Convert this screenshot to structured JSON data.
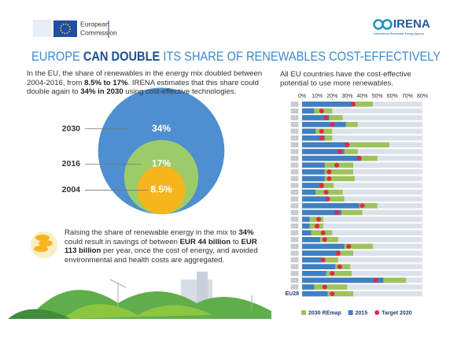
{
  "header": {
    "left_logo": [
      "European",
      "Commission"
    ],
    "right_logo": "IRENA",
    "right_logo_sub": "International Renewable Energy Agency"
  },
  "title": [
    "EUROPE ",
    "CAN DOUBLE",
    " ITS SHARE OF RENEWABLES COST-EFFECTIVELY"
  ],
  "intro": [
    "In the EU, the share of renewables in the energy mix doubled between 2004-2016, from ",
    "8.5% to 17%",
    ". IRENA estimates that this share could double again to ",
    "34% in 2030",
    " using cost-effective technologies."
  ],
  "savings": [
    "Raising the share of renewable energy in the mix to ",
    "34%",
    " could result in savings of between ",
    "EUR 44 billion",
    " to ",
    "EUR 113 billion",
    " per year, once the cost of energy, and avoided environmental and health costs are aggregated."
  ],
  "chart_data": [
    {
      "type": "nested-circles",
      "categories": [
        "2030",
        "2016",
        "2004"
      ],
      "values": [
        34,
        17,
        8.5
      ],
      "value_labels": [
        "34%",
        "17%",
        "8.5%"
      ],
      "colors": [
        "#4d8fd0",
        "#9ccc6a",
        "#f6b51c"
      ]
    },
    {
      "type": "bar",
      "title": "All EU countries have the cost-effective potential to use more renewables.",
      "categories": [
        null,
        null,
        null,
        null,
        null,
        null,
        null,
        null,
        null,
        null,
        null,
        null,
        null,
        null,
        null,
        null,
        null,
        null,
        null,
        null,
        null,
        null,
        null,
        null,
        null,
        null,
        null,
        null,
        "EU28"
      ],
      "series": [
        {
          "name": "2030 REmap",
          "color": "#9dc35b",
          "style": "bar",
          "values": [
            47,
            20,
            27,
            37,
            20,
            20,
            58,
            37,
            50,
            34,
            34,
            35,
            21,
            27,
            28,
            50,
            40,
            14,
            14,
            20,
            24,
            47,
            34,
            24,
            32,
            33,
            69,
            30,
            34
          ]
        },
        {
          "name": "2015",
          "color": "#3f7fc4",
          "style": "bar",
          "values": [
            33,
            8,
            18,
            29,
            9,
            15,
            31,
            28,
            39,
            15,
            15,
            15,
            14,
            9,
            17,
            38,
            26,
            5,
            5,
            6,
            12,
            28,
            25,
            13,
            22,
            16,
            54,
            8,
            17
          ]
        },
        {
          "name": "Target 2020",
          "color": "#e0284f",
          "style": "dot",
          "values": [
            34,
            13,
            16,
            20,
            13,
            13,
            30,
            25,
            38,
            23,
            18,
            18,
            13,
            16,
            17,
            40,
            23,
            11,
            10,
            14,
            15,
            31,
            24,
            14,
            25,
            20,
            49,
            15,
            20
          ]
        }
      ],
      "xlim": [
        0,
        80
      ],
      "xticks": [
        {
          "value": 0,
          "label": "0%"
        },
        {
          "value": 10,
          "label": "10%"
        },
        {
          "value": 20,
          "label": "20%"
        },
        {
          "value": 30,
          "label": "30%"
        },
        {
          "value": 40,
          "label": "40%"
        },
        {
          "value": 50,
          "label": "50%"
        },
        {
          "value": 60,
          "label": "60%"
        },
        {
          "value": 70,
          "label": "70%"
        },
        {
          "value": 80,
          "label": "80%"
        }
      ]
    }
  ]
}
